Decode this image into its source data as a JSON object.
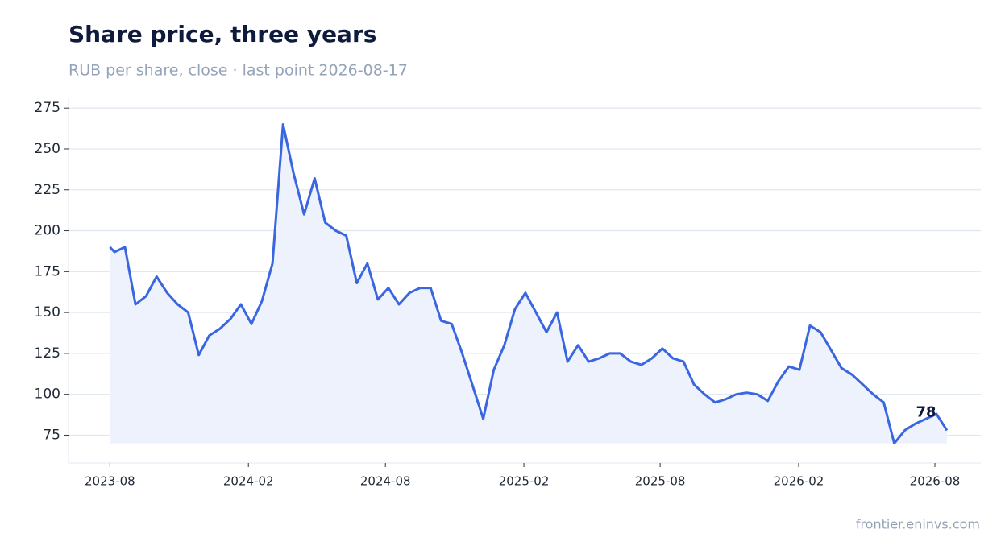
{
  "chart_data": {
    "type": "line",
    "title": "Share price, three years",
    "subtitle": "RUB per share, close · last point 2026-08-17",
    "source": "frontier.eninvs.com",
    "x": [
      "2023-08-01",
      "2023-08-07",
      "2023-08-21",
      "2023-09-04",
      "2023-09-18",
      "2023-10-02",
      "2023-10-16",
      "2023-10-30",
      "2023-11-13",
      "2023-11-27",
      "2023-12-11",
      "2023-12-25",
      "2024-01-08",
      "2024-01-22",
      "2024-02-05",
      "2024-02-19",
      "2024-03-04",
      "2024-03-18",
      "2024-04-01",
      "2024-04-15",
      "2024-04-29",
      "2024-05-13",
      "2024-05-27",
      "2024-06-10",
      "2024-06-24",
      "2024-07-08",
      "2024-07-22",
      "2024-08-05",
      "2024-08-19",
      "2024-09-02",
      "2024-09-16",
      "2024-09-30",
      "2024-10-14",
      "2024-10-28",
      "2024-11-11",
      "2024-11-25",
      "2024-12-09",
      "2024-12-23",
      "2025-01-06",
      "2025-01-20",
      "2025-02-03",
      "2025-02-17",
      "2025-03-03",
      "2025-03-17",
      "2025-03-31",
      "2025-04-14",
      "2025-04-28",
      "2025-05-12",
      "2025-05-26",
      "2025-06-09",
      "2025-06-23",
      "2025-07-07",
      "2025-07-21",
      "2025-08-04",
      "2025-08-18",
      "2025-09-01",
      "2025-09-15",
      "2025-09-29",
      "2025-10-13",
      "2025-10-27",
      "2025-11-10",
      "2025-11-24",
      "2025-12-08",
      "2025-12-22",
      "2026-01-05",
      "2026-01-19",
      "2026-02-02",
      "2026-02-16",
      "2026-03-02",
      "2026-03-16",
      "2026-03-30",
      "2026-04-13",
      "2026-04-27",
      "2026-05-11",
      "2026-05-25",
      "2026-06-08",
      "2026-06-22",
      "2026-07-06",
      "2026-07-20",
      "2026-08-03",
      "2026-08-17"
    ],
    "series": [
      {
        "name": "Close",
        "color": "#3a66e0",
        "fill": "#edf2fd",
        "values": [
          190,
          187,
          190,
          155,
          160,
          172,
          162,
          155,
          150,
          124,
          136,
          140,
          146,
          155,
          143,
          157,
          180,
          265,
          235,
          210,
          232,
          205,
          200,
          197,
          168,
          180,
          158,
          165,
          155,
          162,
          165,
          165,
          145,
          143,
          125,
          105,
          85,
          115,
          130,
          152,
          162,
          150,
          138,
          150,
          120,
          130,
          120,
          122,
          125,
          125,
          120,
          118,
          122,
          128,
          122,
          120,
          106,
          100,
          95,
          97,
          100,
          101,
          100,
          96,
          108,
          117,
          115,
          142,
          138,
          127,
          116,
          112,
          106,
          100,
          95,
          70,
          78,
          82,
          85,
          88,
          78
        ]
      }
    ],
    "xlim": [
      "2023-06-07",
      "2026-10-01"
    ],
    "xticks": [
      {
        "value": "2023-08-01",
        "label": "2023-08"
      },
      {
        "value": "2024-02-01",
        "label": "2024-02"
      },
      {
        "value": "2024-08-01",
        "label": "2024-08"
      },
      {
        "value": "2025-02-01",
        "label": "2025-02"
      },
      {
        "value": "2025-08-01",
        "label": "2025-08"
      },
      {
        "value": "2026-02-01",
        "label": "2026-02"
      },
      {
        "value": "2026-08-01",
        "label": "2026-08"
      }
    ],
    "ylim": [
      58,
      281
    ],
    "yticks": [
      75,
      100,
      125,
      150,
      175,
      200,
      225,
      250,
      275
    ],
    "grid": true
  }
}
